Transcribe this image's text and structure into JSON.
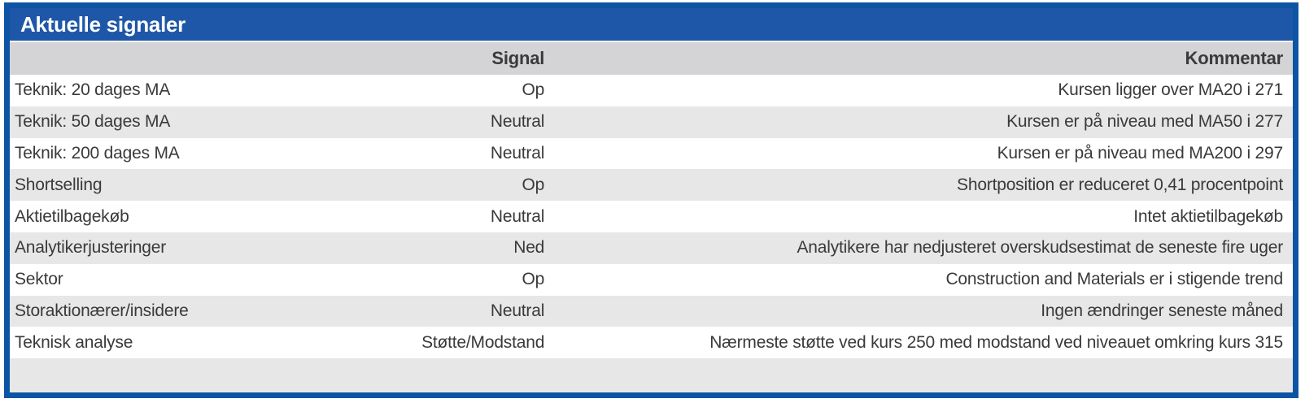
{
  "title": "Aktuelle signaler",
  "colors": {
    "border": "#0d55a4",
    "titlebar_background": "#1e57a8",
    "title_text": "#ffffff",
    "header_row_background": "#d4d4d7",
    "stripe_row_background": "#e7e7e7",
    "body_text": "#3a3a3a"
  },
  "table": {
    "columns": [
      {
        "label": ""
      },
      {
        "label": "Signal"
      },
      {
        "label": "Kommentar"
      }
    ],
    "rows": [
      {
        "label": "Teknik: 20 dages MA",
        "signal": "Op",
        "comment": "Kursen ligger over MA20 i 271"
      },
      {
        "label": "Teknik: 50 dages MA",
        "signal": "Neutral",
        "comment": "Kursen er på niveau med MA50 i 277"
      },
      {
        "label": "Teknik: 200 dages MA",
        "signal": "Neutral",
        "comment": "Kursen er på niveau med MA200 i 297"
      },
      {
        "label": "Shortselling",
        "signal": "Op",
        "comment": "Shortposition er reduceret 0,41 procentpoint"
      },
      {
        "label": "Aktietilbagekøb",
        "signal": "Neutral",
        "comment": "Intet aktietilbagekøb"
      },
      {
        "label": "Analytikerjusteringer",
        "signal": "Ned",
        "comment": "Analytikere har nedjusteret overskudsestimat de seneste fire uger"
      },
      {
        "label": "Sektor",
        "signal": "Op",
        "comment": "Construction and Materials er i stigende trend"
      },
      {
        "label": "Storaktionærer/insidere",
        "signal": "Neutral",
        "comment": "Ingen ændringer seneste måned"
      },
      {
        "label": "Teknisk analyse",
        "signal": "Støtte/Modstand",
        "comment": "Nærmeste støtte ved kurs 250 med modstand ved niveauet omkring kurs 315"
      }
    ]
  }
}
